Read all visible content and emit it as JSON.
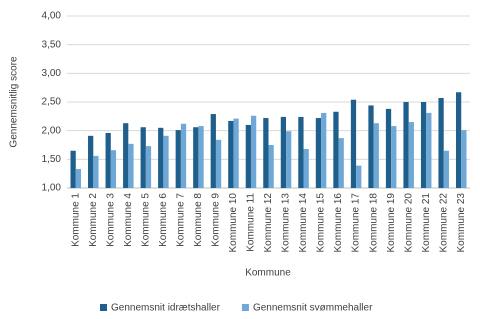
{
  "chart_data": {
    "type": "bar",
    "y_label": "Gennemsnitlig score",
    "x_label": "Kommune",
    "categories": [
      "Kommune 1",
      "Kommune 2",
      "Kommune 3",
      "Kommune 4",
      "Kommune 5",
      "Kommune 6",
      "Kommune 7",
      "Kommune 8",
      "Kommune 9",
      "Kommune 10",
      "Kommune 11",
      "Kommune 12",
      "Kommune 13",
      "Kommune 14",
      "Kommune 15",
      "Kommune 16",
      "Kommune 17",
      "Kommune 18",
      "Kommune 19",
      "Kommune 20",
      "Kommune 21",
      "Kommune 22",
      "Kommune 23"
    ],
    "series": [
      {
        "name": "Gennemsnit idrætshaller",
        "color": "#1f5f8b",
        "values": [
          1.65,
          1.91,
          1.96,
          2.13,
          2.06,
          2.05,
          2.01,
          2.06,
          2.29,
          2.17,
          2.1,
          2.22,
          2.24,
          2.24,
          2.22,
          2.33,
          2.54,
          2.44,
          2.38,
          2.5,
          2.5,
          2.57,
          2.67
        ]
      },
      {
        "name": "Gennemsnit svømmehaller",
        "color": "#6fa8d6",
        "values": [
          1.33,
          1.56,
          1.66,
          1.77,
          1.73,
          1.91,
          2.12,
          2.08,
          1.84,
          2.21,
          2.26,
          1.75,
          1.99,
          1.68,
          2.31,
          1.87,
          1.39,
          2.13,
          2.08,
          2.15,
          2.31,
          1.65,
          2.01
        ]
      }
    ],
    "ylim": [
      1,
      4
    ],
    "yticks": [
      {
        "value": 1,
        "label": "1,00"
      },
      {
        "value": 1.5,
        "label": "1,50"
      },
      {
        "value": 2,
        "label": "2,00"
      },
      {
        "value": 2.5,
        "label": "2,50"
      },
      {
        "value": 3,
        "label": "3,00"
      },
      {
        "value": 3.5,
        "label": "3,50"
      },
      {
        "value": 4,
        "label": "4,00"
      }
    ],
    "grid": true,
    "legend": "bottom"
  }
}
